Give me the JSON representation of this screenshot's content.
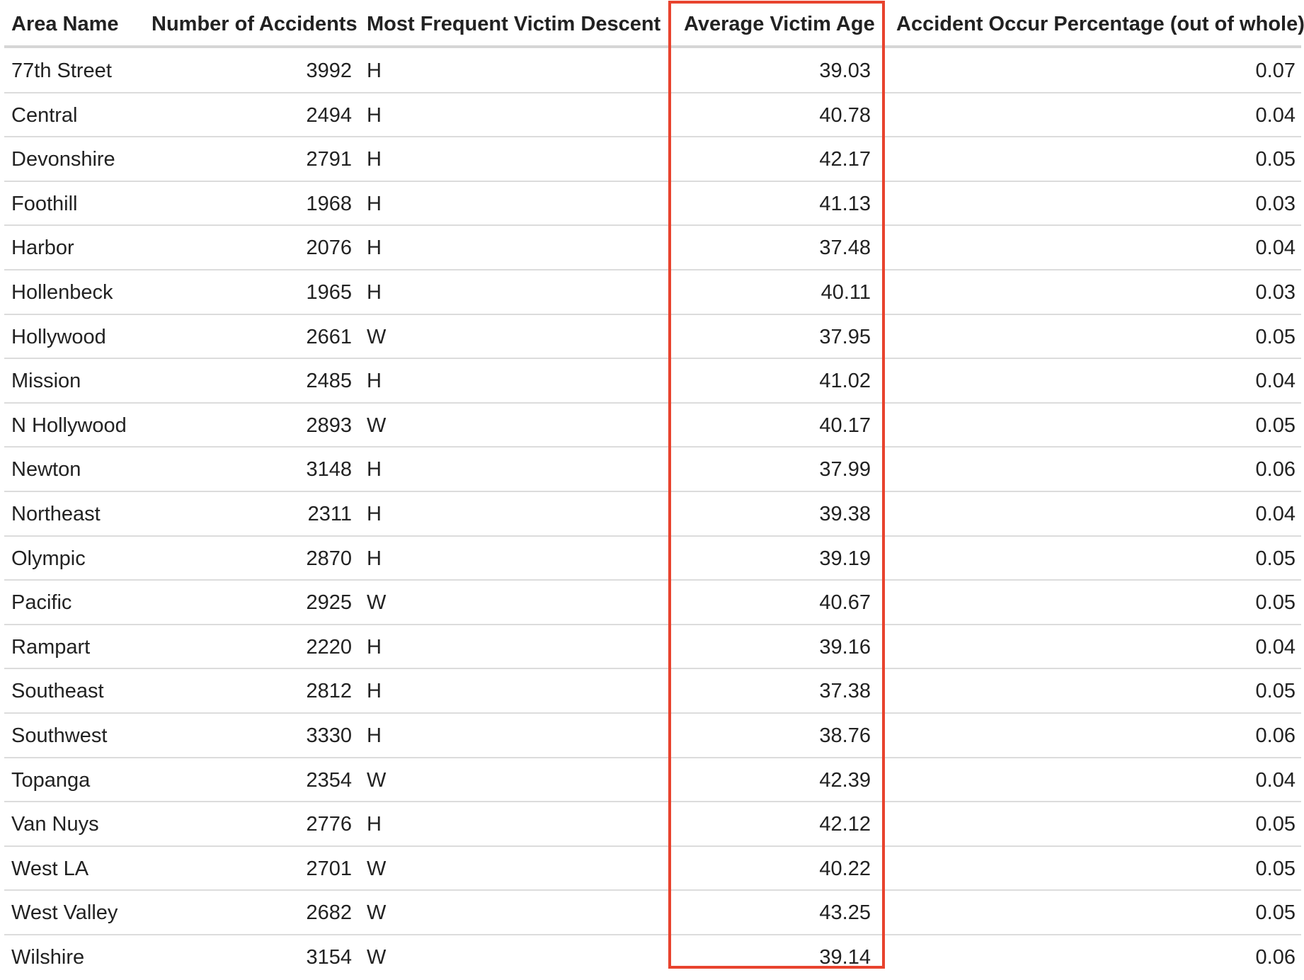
{
  "chart_data": {
    "type": "table",
    "columns": [
      "Area Name",
      "Number of Accidents",
      "Most Frequent Victim Descent",
      "Average Victim Age",
      "Accident Occur Percentage (out of whole)"
    ],
    "rows": [
      [
        "77th Street",
        "3992",
        "H",
        "39.03",
        "0.07"
      ],
      [
        "Central",
        "2494",
        "H",
        "40.78",
        "0.04"
      ],
      [
        "Devonshire",
        "2791",
        "H",
        "42.17",
        "0.05"
      ],
      [
        "Foothill",
        "1968",
        "H",
        "41.13",
        "0.03"
      ],
      [
        "Harbor",
        "2076",
        "H",
        "37.48",
        "0.04"
      ],
      [
        "Hollenbeck",
        "1965",
        "H",
        "40.11",
        "0.03"
      ],
      [
        "Hollywood",
        "2661",
        "W",
        "37.95",
        "0.05"
      ],
      [
        "Mission",
        "2485",
        "H",
        "41.02",
        "0.04"
      ],
      [
        "N Hollywood",
        "2893",
        "W",
        "40.17",
        "0.05"
      ],
      [
        "Newton",
        "3148",
        "H",
        "37.99",
        "0.06"
      ],
      [
        "Northeast",
        "2311",
        "H",
        "39.38",
        "0.04"
      ],
      [
        "Olympic",
        "2870",
        "H",
        "39.19",
        "0.05"
      ],
      [
        "Pacific",
        "2925",
        "W",
        "40.67",
        "0.05"
      ],
      [
        "Rampart",
        "2220",
        "H",
        "39.16",
        "0.04"
      ],
      [
        "Southeast",
        "2812",
        "H",
        "37.38",
        "0.05"
      ],
      [
        "Southwest",
        "3330",
        "H",
        "38.76",
        "0.06"
      ],
      [
        "Topanga",
        "2354",
        "W",
        "42.39",
        "0.04"
      ],
      [
        "Van Nuys",
        "2776",
        "H",
        "42.12",
        "0.05"
      ],
      [
        "West LA",
        "2701",
        "W",
        "40.22",
        "0.05"
      ],
      [
        "West Valley",
        "2682",
        "W",
        "43.25",
        "0.05"
      ],
      [
        "Wilshire",
        "3154",
        "W",
        "39.14",
        "0.06"
      ]
    ],
    "highlighted_column": "Average Victim Age",
    "colors": {
      "highlight_border": "#e8432e",
      "row_rule": "#dcdcdc",
      "text": "#222222"
    }
  }
}
